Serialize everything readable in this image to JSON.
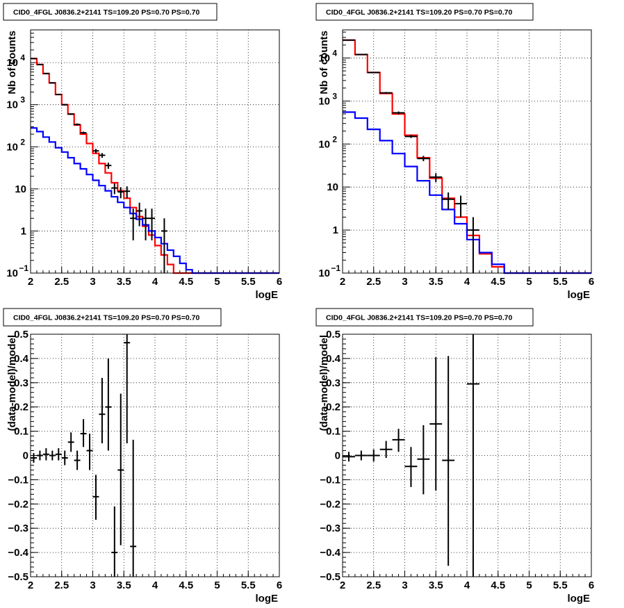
{
  "chart_data": [
    {
      "type": "line",
      "title": "CID0_4FGL J0836.2+2141 TS=109.20 PS=0.70 PS=0.70",
      "xlabel": "logE",
      "ylabel": "Nb of counts",
      "xlim": [
        2,
        6
      ],
      "ylim": [
        0.1,
        60000
      ],
      "yscale": "log",
      "grid": true,
      "xticks": [
        "2",
        "2.5",
        "3",
        "3.5",
        "4",
        "4.5",
        "5",
        "5.5",
        "6"
      ],
      "yticks": [
        {
          "value": 0.1,
          "label": "10",
          "exp": "−1"
        },
        {
          "value": 1,
          "label": "1",
          "exp": ""
        },
        {
          "value": 10,
          "label": "10",
          "exp": ""
        },
        {
          "value": 100,
          "label": "10",
          "exp": "2"
        },
        {
          "value": 1000,
          "label": "10",
          "exp": "3"
        },
        {
          "value": 10000,
          "label": "10",
          "exp": "4"
        }
      ],
      "series": [
        {
          "color": "#ff0000",
          "style": "step",
          "edges": [
            2.0,
            2.1,
            2.2,
            2.3,
            2.4,
            2.5,
            2.6,
            2.7,
            2.8,
            2.9,
            3.0,
            3.1,
            3.2,
            3.3,
            3.4,
            3.5,
            3.6,
            3.7,
            3.8,
            3.9,
            4.0,
            4.1,
            4.2,
            4.3,
            4.4,
            4.5,
            4.6,
            4.7,
            4.8,
            4.9,
            5.0,
            5.1,
            5.2,
            5.3,
            5.4,
            5.5,
            5.6,
            5.7,
            5.8,
            5.9,
            6.0
          ],
          "values": [
            12500,
            9000,
            5500,
            3300,
            1750,
            1000,
            600,
            330,
            200,
            120,
            70,
            40,
            24,
            14,
            9,
            6,
            3.6,
            2.2,
            1.3,
            0.8,
            0.45,
            0.27,
            0.16,
            0.1,
            0.1,
            0.1,
            0.1,
            0.1,
            0.1,
            0.1,
            0.1,
            0.1,
            0.1,
            0.1,
            0.1,
            0.1,
            0.1,
            0.1,
            0.1,
            0.1
          ]
        },
        {
          "color": "#0000ff",
          "style": "step",
          "edges": [
            2.0,
            2.1,
            2.2,
            2.3,
            2.4,
            2.5,
            2.6,
            2.7,
            2.8,
            2.9,
            3.0,
            3.1,
            3.2,
            3.3,
            3.4,
            3.5,
            3.6,
            3.7,
            3.8,
            3.9,
            4.0,
            4.1,
            4.2,
            4.3,
            4.4,
            4.5,
            4.6,
            4.7,
            4.8,
            4.9,
            5.0,
            5.1,
            5.2,
            5.3,
            5.4,
            5.5,
            5.6,
            5.7,
            5.8,
            5.9,
            6.0
          ],
          "values": [
            280,
            230,
            170,
            130,
            95,
            75,
            55,
            40,
            30,
            22,
            16,
            12,
            9,
            6.5,
            4.8,
            3.6,
            2.6,
            1.9,
            1.4,
            1.0,
            0.7,
            0.5,
            0.35,
            0.25,
            0.17,
            0.12,
            0.1,
            0.1,
            0.1,
            0.1,
            0.1,
            0.1,
            0.1,
            0.1,
            0.1,
            0.1,
            0.1,
            0.1,
            0.1,
            0.1
          ]
        },
        {
          "color": "#000000",
          "style": "errorbar",
          "xerr": 0.05,
          "points": [
            {
              "x": 2.05,
              "y": 12500,
              "lo": 12300,
              "hi": 12700
            },
            {
              "x": 2.15,
              "y": 9000,
              "lo": 8800,
              "hi": 9200
            },
            {
              "x": 2.25,
              "y": 5500,
              "lo": 5350,
              "hi": 5650
            },
            {
              "x": 2.35,
              "y": 3300,
              "lo": 3200,
              "hi": 3420
            },
            {
              "x": 2.45,
              "y": 1750,
              "lo": 1700,
              "hi": 1800
            },
            {
              "x": 2.55,
              "y": 1000,
              "lo": 960,
              "hi": 1040
            },
            {
              "x": 2.65,
              "y": 600,
              "lo": 575,
              "hi": 625
            },
            {
              "x": 2.75,
              "y": 340,
              "lo": 320,
              "hi": 360
            },
            {
              "x": 2.85,
              "y": 215,
              "lo": 200,
              "hi": 230
            },
            {
              "x": 3.05,
              "y": 80,
              "lo": 71,
              "hi": 89
            },
            {
              "x": 3.15,
              "y": 63,
              "lo": 55,
              "hi": 71
            },
            {
              "x": 3.25,
              "y": 36,
              "lo": 30,
              "hi": 42
            },
            {
              "x": 3.35,
              "y": 10.5,
              "lo": 7.5,
              "hi": 13.5
            },
            {
              "x": 3.45,
              "y": 8.5,
              "lo": 6,
              "hi": 11
            },
            {
              "x": 3.55,
              "y": 8.8,
              "lo": 6,
              "hi": 11.5
            },
            {
              "x": 3.65,
              "y": 2,
              "lo": 0.6,
              "hi": 3.4
            },
            {
              "x": 3.75,
              "y": 3,
              "lo": 1.3,
              "hi": 4.7
            },
            {
              "x": 3.85,
              "y": 2,
              "lo": 0.6,
              "hi": 3.4
            },
            {
              "x": 3.95,
              "y": 2,
              "lo": 0.6,
              "hi": 3.4
            },
            {
              "x": 4.15,
              "y": 1,
              "lo": 0.1,
              "hi": 2.0
            }
          ]
        }
      ]
    },
    {
      "type": "line",
      "title": "CID0_4FGL J0836.2+2141 TS=109.20 PS=0.70 PS=0.70",
      "xlabel": "logE",
      "ylabel": "Nb of counts",
      "xlim": [
        2,
        6
      ],
      "ylim": [
        0.1,
        45000
      ],
      "yscale": "log",
      "grid": true,
      "xticks": [
        "2",
        "2.5",
        "3",
        "3.5",
        "4",
        "4.5",
        "5",
        "5.5",
        "6"
      ],
      "yticks": [
        {
          "value": 0.1,
          "label": "10",
          "exp": "−1"
        },
        {
          "value": 1,
          "label": "1",
          "exp": ""
        },
        {
          "value": 10,
          "label": "10",
          "exp": ""
        },
        {
          "value": 100,
          "label": "10",
          "exp": "2"
        },
        {
          "value": 1000,
          "label": "10",
          "exp": "3"
        },
        {
          "value": 10000,
          "label": "10",
          "exp": "4"
        }
      ],
      "series": [
        {
          "color": "#ff0000",
          "style": "step",
          "edges": [
            2.0,
            2.2,
            2.4,
            2.6,
            2.8,
            3.0,
            3.2,
            3.4,
            3.6,
            3.8,
            4.0,
            4.2,
            4.4,
            4.6,
            4.8,
            5.0,
            5.2,
            5.4,
            5.6,
            5.8,
            6.0
          ],
          "values": [
            26000,
            12000,
            4600,
            1500,
            500,
            160,
            48,
            16,
            5.5,
            2.0,
            0.75,
            0.28,
            0.14,
            0.1,
            0.1,
            0.1,
            0.1,
            0.1,
            0.1,
            0.1
          ]
        },
        {
          "color": "#0000ff",
          "style": "step",
          "edges": [
            2.0,
            2.2,
            2.4,
            2.6,
            2.8,
            3.0,
            3.2,
            3.4,
            3.6,
            3.8,
            4.0,
            4.2,
            4.4,
            4.6,
            4.8,
            5.0,
            5.2,
            5.4,
            5.6,
            5.8,
            6.0
          ],
          "values": [
            550,
            400,
            220,
            120,
            60,
            30,
            14,
            6.5,
            3.0,
            1.4,
            0.6,
            0.3,
            0.16,
            0.1,
            0.1,
            0.1,
            0.1,
            0.1,
            0.1,
            0.1
          ]
        },
        {
          "color": "#000000",
          "style": "errorbar",
          "xerr": 0.1,
          "points": [
            {
              "x": 2.1,
              "y": 26000,
              "lo": 25700,
              "hi": 26300
            },
            {
              "x": 2.3,
              "y": 12000,
              "lo": 11800,
              "hi": 12200
            },
            {
              "x": 2.5,
              "y": 4600,
              "lo": 4480,
              "hi": 4720
            },
            {
              "x": 2.7,
              "y": 1550,
              "lo": 1480,
              "hi": 1620
            },
            {
              "x": 2.9,
              "y": 530,
              "lo": 490,
              "hi": 570
            },
            {
              "x": 3.1,
              "y": 150,
              "lo": 138,
              "hi": 162
            },
            {
              "x": 3.3,
              "y": 46,
              "lo": 40,
              "hi": 53
            },
            {
              "x": 3.5,
              "y": 17,
              "lo": 13,
              "hi": 21
            },
            {
              "x": 3.7,
              "y": 5.2,
              "lo": 3.0,
              "hi": 7.5
            },
            {
              "x": 3.9,
              "y": 4.1,
              "lo": 2.0,
              "hi": 6.3
            },
            {
              "x": 4.1,
              "y": 1.0,
              "lo": 0.1,
              "hi": 2.0
            }
          ]
        }
      ]
    },
    {
      "type": "scatter",
      "title": "CID0_4FGL J0836.2+2141 TS=109.20 PS=0.70 PS=0.70",
      "xlabel": "logE",
      "ylabel": "(data-model)/model",
      "xlim": [
        2,
        6
      ],
      "ylim": [
        -0.5,
        0.5
      ],
      "grid": true,
      "xticks": [
        "2",
        "2.5",
        "3",
        "3.5",
        "4",
        "4.5",
        "5",
        "5.5",
        "6"
      ],
      "yticks": [
        "−0.5",
        "−0.4",
        "−0.3",
        "−0.2",
        "−0.1",
        "0",
        "0.1",
        "0.2",
        "0.3",
        "0.4",
        "0.5"
      ],
      "series": [
        {
          "color": "#000000",
          "style": "errorbar",
          "xerr": 0.05,
          "points": [
            {
              "x": 2.05,
              "y": -0.01,
              "lo": -0.03,
              "hi": 0.01
            },
            {
              "x": 2.15,
              "y": 0.0,
              "lo": -0.02,
              "hi": 0.02
            },
            {
              "x": 2.25,
              "y": 0.005,
              "lo": -0.02,
              "hi": 0.03
            },
            {
              "x": 2.35,
              "y": 0.0,
              "lo": -0.02,
              "hi": 0.02
            },
            {
              "x": 2.45,
              "y": 0.005,
              "lo": -0.02,
              "hi": 0.03
            },
            {
              "x": 2.55,
              "y": -0.01,
              "lo": -0.04,
              "hi": 0.02
            },
            {
              "x": 2.65,
              "y": 0.055,
              "lo": 0.015,
              "hi": 0.095
            },
            {
              "x": 2.75,
              "y": -0.02,
              "lo": -0.06,
              "hi": 0.02
            },
            {
              "x": 2.85,
              "y": 0.09,
              "lo": 0.035,
              "hi": 0.15
            },
            {
              "x": 2.95,
              "y": 0.02,
              "lo": -0.06,
              "hi": 0.09
            },
            {
              "x": 3.05,
              "y": -0.17,
              "lo": -0.265,
              "hi": -0.08
            },
            {
              "x": 3.15,
              "y": 0.17,
              "lo": 0.05,
              "hi": 0.32
            },
            {
              "x": 3.25,
              "y": 0.2,
              "lo": 0.02,
              "hi": 0.4
            },
            {
              "x": 3.35,
              "y": -0.4,
              "lo": -0.5,
              "hi": -0.21
            },
            {
              "x": 3.45,
              "y": -0.06,
              "lo": -0.37,
              "hi": 0.255
            },
            {
              "x": 3.55,
              "y": 0.465,
              "lo": 0.05,
              "hi": 0.5
            },
            {
              "x": 3.65,
              "y": -0.375,
              "lo": -0.5,
              "hi": 0.065
            }
          ]
        }
      ]
    },
    {
      "type": "scatter",
      "title": "CID0_4FGL J0836.2+2141 TS=109.20 PS=0.70 PS=0.70",
      "xlabel": "logE",
      "ylabel": "(data-model)/model",
      "xlim": [
        2,
        6
      ],
      "ylim": [
        -0.5,
        0.5
      ],
      "grid": true,
      "xticks": [
        "2",
        "2.5",
        "3",
        "3.5",
        "4",
        "4.5",
        "5",
        "5.5",
        "6"
      ],
      "yticks": [
        "−0.5",
        "−0.4",
        "−0.3",
        "−0.2",
        "−0.1",
        "0",
        "0.1",
        "0.2",
        "0.3",
        "0.4",
        "0.5"
      ],
      "series": [
        {
          "color": "#000000",
          "style": "errorbar",
          "xerr": 0.1,
          "points": [
            {
              "x": 2.1,
              "y": -0.005,
              "lo": -0.025,
              "hi": 0.015
            },
            {
              "x": 2.3,
              "y": 0.0,
              "lo": -0.02,
              "hi": 0.02
            },
            {
              "x": 2.5,
              "y": 0.0,
              "lo": -0.025,
              "hi": 0.025
            },
            {
              "x": 2.7,
              "y": 0.025,
              "lo": -0.01,
              "hi": 0.06
            },
            {
              "x": 2.9,
              "y": 0.065,
              "lo": 0.015,
              "hi": 0.11
            },
            {
              "x": 3.1,
              "y": -0.045,
              "lo": -0.13,
              "hi": 0.035
            },
            {
              "x": 3.3,
              "y": -0.015,
              "lo": -0.16,
              "hi": 0.125
            },
            {
              "x": 3.5,
              "y": 0.13,
              "lo": -0.145,
              "hi": 0.405
            },
            {
              "x": 3.7,
              "y": -0.02,
              "lo": -0.455,
              "hi": 0.41
            },
            {
              "x": 4.1,
              "y": 0.295,
              "lo": -0.5,
              "hi": 0.5
            }
          ]
        }
      ]
    }
  ]
}
